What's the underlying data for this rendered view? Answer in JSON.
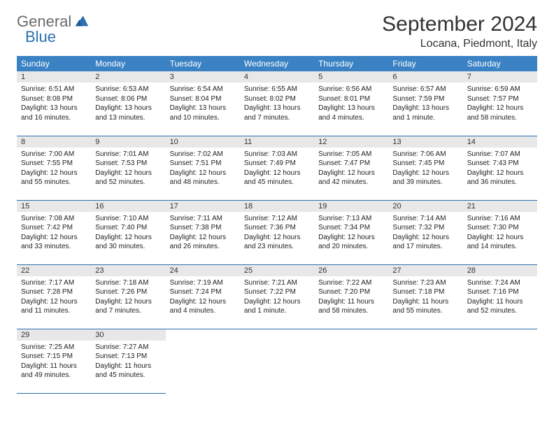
{
  "logo": {
    "general": "General",
    "blue": "Blue"
  },
  "title": "September 2024",
  "location": "Locana, Piedmont, Italy",
  "weekdays": [
    "Sunday",
    "Monday",
    "Tuesday",
    "Wednesday",
    "Thursday",
    "Friday",
    "Saturday"
  ],
  "colors": {
    "header_bg": "#3b82c4",
    "header_text": "#ffffff",
    "daynum_bg": "#e8e8e8",
    "border": "#2a6fb0",
    "logo_gray": "#6b6b6b",
    "logo_blue": "#2a6fb0"
  },
  "weeks": [
    [
      {
        "n": "1",
        "sr": "6:51 AM",
        "ss": "8:08 PM",
        "dl": "13 hours and 16 minutes."
      },
      {
        "n": "2",
        "sr": "6:53 AM",
        "ss": "8:06 PM",
        "dl": "13 hours and 13 minutes."
      },
      {
        "n": "3",
        "sr": "6:54 AM",
        "ss": "8:04 PM",
        "dl": "13 hours and 10 minutes."
      },
      {
        "n": "4",
        "sr": "6:55 AM",
        "ss": "8:02 PM",
        "dl": "13 hours and 7 minutes."
      },
      {
        "n": "5",
        "sr": "6:56 AM",
        "ss": "8:01 PM",
        "dl": "13 hours and 4 minutes."
      },
      {
        "n": "6",
        "sr": "6:57 AM",
        "ss": "7:59 PM",
        "dl": "13 hours and 1 minute."
      },
      {
        "n": "7",
        "sr": "6:59 AM",
        "ss": "7:57 PM",
        "dl": "12 hours and 58 minutes."
      }
    ],
    [
      {
        "n": "8",
        "sr": "7:00 AM",
        "ss": "7:55 PM",
        "dl": "12 hours and 55 minutes."
      },
      {
        "n": "9",
        "sr": "7:01 AM",
        "ss": "7:53 PM",
        "dl": "12 hours and 52 minutes."
      },
      {
        "n": "10",
        "sr": "7:02 AM",
        "ss": "7:51 PM",
        "dl": "12 hours and 48 minutes."
      },
      {
        "n": "11",
        "sr": "7:03 AM",
        "ss": "7:49 PM",
        "dl": "12 hours and 45 minutes."
      },
      {
        "n": "12",
        "sr": "7:05 AM",
        "ss": "7:47 PM",
        "dl": "12 hours and 42 minutes."
      },
      {
        "n": "13",
        "sr": "7:06 AM",
        "ss": "7:45 PM",
        "dl": "12 hours and 39 minutes."
      },
      {
        "n": "14",
        "sr": "7:07 AM",
        "ss": "7:43 PM",
        "dl": "12 hours and 36 minutes."
      }
    ],
    [
      {
        "n": "15",
        "sr": "7:08 AM",
        "ss": "7:42 PM",
        "dl": "12 hours and 33 minutes."
      },
      {
        "n": "16",
        "sr": "7:10 AM",
        "ss": "7:40 PM",
        "dl": "12 hours and 30 minutes."
      },
      {
        "n": "17",
        "sr": "7:11 AM",
        "ss": "7:38 PM",
        "dl": "12 hours and 26 minutes."
      },
      {
        "n": "18",
        "sr": "7:12 AM",
        "ss": "7:36 PM",
        "dl": "12 hours and 23 minutes."
      },
      {
        "n": "19",
        "sr": "7:13 AM",
        "ss": "7:34 PM",
        "dl": "12 hours and 20 minutes."
      },
      {
        "n": "20",
        "sr": "7:14 AM",
        "ss": "7:32 PM",
        "dl": "12 hours and 17 minutes."
      },
      {
        "n": "21",
        "sr": "7:16 AM",
        "ss": "7:30 PM",
        "dl": "12 hours and 14 minutes."
      }
    ],
    [
      {
        "n": "22",
        "sr": "7:17 AM",
        "ss": "7:28 PM",
        "dl": "12 hours and 11 minutes."
      },
      {
        "n": "23",
        "sr": "7:18 AM",
        "ss": "7:26 PM",
        "dl": "12 hours and 7 minutes."
      },
      {
        "n": "24",
        "sr": "7:19 AM",
        "ss": "7:24 PM",
        "dl": "12 hours and 4 minutes."
      },
      {
        "n": "25",
        "sr": "7:21 AM",
        "ss": "7:22 PM",
        "dl": "12 hours and 1 minute."
      },
      {
        "n": "26",
        "sr": "7:22 AM",
        "ss": "7:20 PM",
        "dl": "11 hours and 58 minutes."
      },
      {
        "n": "27",
        "sr": "7:23 AM",
        "ss": "7:18 PM",
        "dl": "11 hours and 55 minutes."
      },
      {
        "n": "28",
        "sr": "7:24 AM",
        "ss": "7:16 PM",
        "dl": "11 hours and 52 minutes."
      }
    ],
    [
      {
        "n": "29",
        "sr": "7:25 AM",
        "ss": "7:15 PM",
        "dl": "11 hours and 49 minutes."
      },
      {
        "n": "30",
        "sr": "7:27 AM",
        "ss": "7:13 PM",
        "dl": "11 hours and 45 minutes."
      },
      null,
      null,
      null,
      null,
      null
    ]
  ]
}
